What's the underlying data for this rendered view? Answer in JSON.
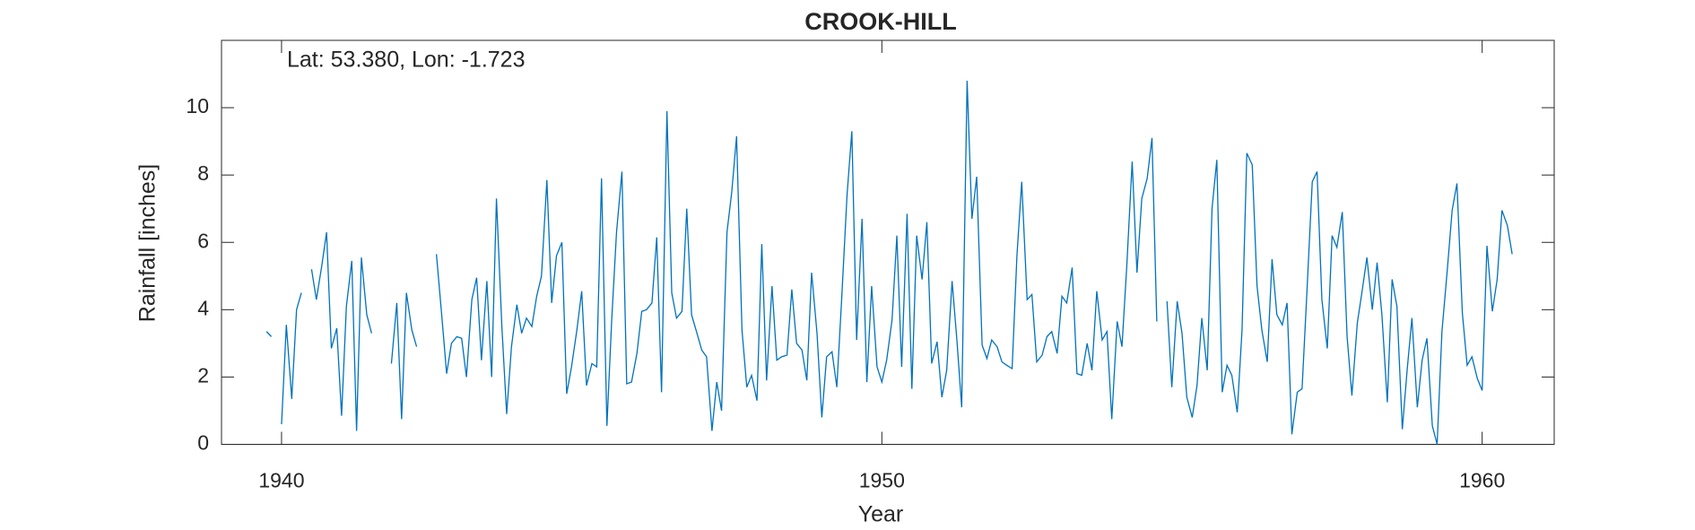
{
  "chart_data": {
    "type": "line",
    "title": "CROOK-HILL",
    "annotation": "Lat: 53.380, Lon: -1.723",
    "xlabel": "Year",
    "ylabel": "Rainfall [inches]",
    "xlim": [
      1939,
      1961.2
    ],
    "xticks": [
      1940,
      1950,
      1960
    ],
    "ylim": [
      0,
      12
    ],
    "yticks": [
      0,
      2,
      4,
      6,
      8,
      10
    ],
    "series": [
      {
        "name": "Rainfall",
        "color": "#0072bd",
        "x": [
          1939.75,
          1939.83,
          1939.92,
          1940,
          1940.08,
          1940.17,
          1940.25,
          1940.33,
          1940.42,
          1940.5,
          1940.58,
          1940.67,
          1940.75,
          1940.83,
          1940.92,
          1941,
          1941.08,
          1941.17,
          1941.25,
          1941.33,
          1941.42,
          1941.5,
          1941.58,
          1941.67,
          1941.75,
          1941.83,
          1941.92,
          1942,
          1942.08,
          1942.17,
          1942.25,
          1942.33,
          1942.42,
          1942.5,
          1942.58,
          1942.67,
          1942.75,
          1942.83,
          1942.92,
          1943,
          1943.08,
          1943.17,
          1943.25,
          1943.33,
          1943.42,
          1943.5,
          1943.58,
          1943.67,
          1943.75,
          1943.83,
          1943.92,
          1944,
          1944.08,
          1944.17,
          1944.25,
          1944.33,
          1944.42,
          1944.5,
          1944.58,
          1944.67,
          1944.75,
          1944.83,
          1944.92,
          1945,
          1945.08,
          1945.17,
          1945.25,
          1945.33,
          1945.42,
          1945.5,
          1945.58,
          1945.67,
          1945.75,
          1945.83,
          1945.92,
          1946,
          1946.08,
          1946.17,
          1946.25,
          1946.33,
          1946.42,
          1946.5,
          1946.58,
          1946.67,
          1946.75,
          1946.83,
          1946.92,
          1947,
          1947.08,
          1947.17,
          1947.25,
          1947.33,
          1947.42,
          1947.5,
          1947.58,
          1947.67,
          1947.75,
          1947.83,
          1947.92,
          1948,
          1948.08,
          1948.17,
          1948.25,
          1948.33,
          1948.42,
          1948.5,
          1948.58,
          1948.67,
          1948.75,
          1948.83,
          1948.92,
          1949,
          1949.08,
          1949.17,
          1949.25,
          1949.33,
          1949.42,
          1949.5,
          1949.58,
          1949.67,
          1949.75,
          1949.83,
          1949.92,
          1950,
          1950.08,
          1950.17,
          1950.25,
          1950.33,
          1950.42,
          1950.5,
          1950.58,
          1950.67,
          1950.75,
          1950.83,
          1950.92,
          1951,
          1951.08,
          1951.17,
          1951.25,
          1951.33,
          1951.42,
          1951.5,
          1951.58,
          1951.67,
          1951.75,
          1951.83,
          1951.92,
          1952,
          1952.08,
          1952.17,
          1952.25,
          1952.33,
          1952.42,
          1952.5,
          1952.58,
          1952.67,
          1952.75,
          1952.83,
          1952.92,
          1953,
          1953.08,
          1953.17,
          1953.25,
          1953.33,
          1953.42,
          1953.5,
          1953.58,
          1953.67,
          1953.75,
          1953.83,
          1953.92,
          1954,
          1954.08,
          1954.17,
          1954.25,
          1954.33,
          1954.42,
          1954.5,
          1954.58,
          1954.67,
          1954.75,
          1954.83,
          1954.92,
          1955,
          1955.08,
          1955.17,
          1955.25,
          1955.33,
          1955.42,
          1955.5,
          1955.58,
          1955.67,
          1955.75,
          1955.83,
          1955.92,
          1956,
          1956.08,
          1956.17,
          1956.25,
          1956.33,
          1956.42,
          1956.5,
          1956.58,
          1956.67,
          1956.75,
          1956.83,
          1956.92,
          1957,
          1957.08,
          1957.17,
          1957.25,
          1957.33,
          1957.42,
          1957.5,
          1957.58,
          1957.67,
          1957.75,
          1957.83,
          1957.92,
          1958,
          1958.08,
          1958.17,
          1958.25,
          1958.33,
          1958.42,
          1958.5,
          1958.58,
          1958.67,
          1958.75,
          1958.83,
          1958.92,
          1959,
          1959.08,
          1959.17,
          1959.25,
          1959.33,
          1959.42,
          1959.5,
          1959.58,
          1959.67,
          1959.75,
          1959.83,
          1959.92,
          1960,
          1960.08,
          1960.17,
          1960.25,
          1960.33,
          1960.42,
          1960.5
        ],
        "values": [
          3.35,
          3.2,
          null,
          0.6,
          3.55,
          1.35,
          4.0,
          4.5,
          null,
          5.2,
          4.3,
          5.3,
          6.3,
          2.85,
          3.45,
          0.85,
          4.1,
          5.45,
          0.4,
          5.55,
          3.85,
          3.3,
          null,
          null,
          null,
          2.4,
          4.2,
          0.75,
          4.5,
          3.4,
          2.9,
          null,
          null,
          null,
          5.65,
          3.8,
          2.1,
          3.0,
          3.2,
          3.15,
          2.0,
          4.3,
          4.95,
          2.5,
          4.85,
          2.0,
          7.3,
          3.5,
          0.9,
          2.9,
          4.15,
          3.3,
          3.75,
          3.5,
          4.4,
          5.0,
          7.85,
          4.2,
          5.6,
          6.0,
          1.5,
          2.3,
          3.4,
          4.55,
          1.75,
          2.4,
          2.3,
          7.9,
          0.55,
          3.7,
          6.3,
          8.1,
          1.8,
          1.85,
          2.7,
          3.95,
          4.0,
          4.2,
          6.15,
          1.55,
          9.9,
          4.5,
          3.75,
          3.95,
          7.0,
          3.85,
          3.3,
          2.8,
          2.6,
          0.4,
          1.85,
          1.0,
          6.3,
          7.5,
          9.15,
          3.4,
          1.7,
          2.05,
          1.3,
          5.95,
          1.9,
          4.7,
          2.5,
          2.6,
          2.65,
          4.6,
          3.0,
          2.8,
          1.9,
          5.1,
          3.3,
          0.8,
          2.6,
          2.75,
          1.7,
          4.3,
          7.4,
          9.3,
          3.1,
          6.7,
          1.85,
          4.7,
          2.3,
          1.85,
          2.5,
          3.7,
          6.2,
          2.3,
          6.85,
          1.65,
          6.2,
          4.9,
          6.6,
          2.4,
          3.05,
          1.4,
          2.2,
          4.85,
          3.1,
          1.1,
          10.8,
          6.7,
          7.95,
          2.95,
          2.55,
          3.1,
          2.9,
          2.45,
          2.35,
          2.25,
          5.6,
          7.8,
          4.3,
          4.45,
          2.45,
          2.65,
          3.2,
          3.35,
          2.7,
          4.4,
          4.2,
          5.25,
          2.1,
          2.05,
          3.0,
          2.2,
          4.55,
          3.1,
          3.35,
          0.75,
          3.65,
          2.9,
          5.3,
          8.4,
          5.1,
          7.3,
          7.9,
          9.1,
          3.65,
          null,
          4.25,
          1.7,
          4.25,
          3.3,
          1.4,
          0.8,
          1.75,
          3.75,
          2.2,
          7.0,
          8.45,
          1.55,
          2.35,
          2.05,
          0.95,
          3.4,
          8.65,
          8.3,
          4.7,
          3.4,
          2.45,
          5.5,
          3.85,
          3.55,
          4.2,
          0.3,
          1.55,
          1.65,
          4.5,
          7.8,
          8.1,
          4.3,
          2.85,
          6.2,
          5.85,
          6.9,
          3.2,
          1.45,
          3.6,
          4.55,
          5.55,
          4.0,
          5.4,
          3.85,
          1.25,
          4.9,
          4.1,
          0.45,
          2.2,
          3.75,
          1.1,
          2.5,
          3.15,
          0.55,
          0.0,
          3.35,
          5.2,
          6.95,
          7.75,
          3.9,
          2.35,
          2.6,
          1.95,
          1.6,
          5.9,
          3.95,
          4.9,
          6.95,
          6.5,
          5.65
        ]
      }
    ]
  }
}
